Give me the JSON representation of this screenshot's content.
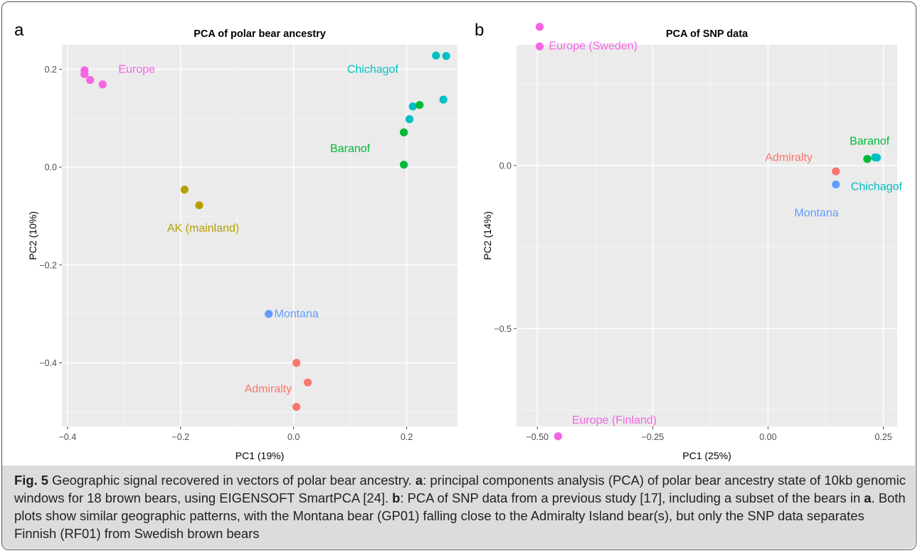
{
  "figure": {
    "caption": {
      "fig_label": "Fig. 5",
      "lead": " Geographic signal recovered in vectors of polar bear ancestry. ",
      "a_label": "a",
      "a_text": ": principal components analysis (PCA) of polar bear ancestry state of 10kb genomic windows for 18 brown bears, using EIGENSOFT SmartPCA [24]. ",
      "b_label": "b",
      "b_text": ": PCA of SNP data from a previous study [17], including a subset of the bears in ",
      "a_ref": "a",
      "tail": ". Both plots show similar geographic patterns, with the Montana bear (GP01) falling close to the Admiralty Island bear(s), but only the SNP data separates Finnish (RF01) from Swedish brown bears"
    }
  },
  "chart_data": [
    {
      "panel_label": "a",
      "type": "scatter",
      "title": "PCA of polar bear ancestry",
      "xlabel": "PC1 (19%)",
      "ylabel": "PC2 (10%)",
      "xlim": [
        -0.41,
        0.29
      ],
      "ylim": [
        -0.53,
        0.25
      ],
      "xticks": [
        -0.4,
        -0.2,
        0.0,
        0.2
      ],
      "xtick_labels": [
        "−0.4",
        "−0.2",
        "0.0",
        "0.2"
      ],
      "yticks": [
        0.2,
        0.0,
        -0.2,
        -0.4
      ],
      "ytick_labels": [
        "0.2",
        "0.0",
        "−0.2",
        "−0.4"
      ],
      "grid": true,
      "background": "#ebebeb",
      "series": [
        {
          "name": "Europe",
          "color": "#f564e3",
          "label_x": -0.31,
          "label_y": 0.2,
          "label_anchor": "start",
          "points": [
            [
              -0.37,
              0.198
            ],
            [
              -0.37,
              0.19
            ],
            [
              -0.36,
              0.178
            ],
            [
              -0.338,
              0.169
            ]
          ]
        },
        {
          "name": "Chichagof",
          "color": "#00bfc4",
          "label_x": 0.14,
          "label_y": 0.2,
          "label_anchor": "middle",
          "points": [
            [
              0.252,
              0.228
            ],
            [
              0.27,
              0.227
            ],
            [
              0.265,
              0.138
            ],
            [
              0.211,
              0.124
            ],
            [
              0.205,
              0.098
            ]
          ]
        },
        {
          "name": "Baranof",
          "color": "#00ba38",
          "label_x": 0.1,
          "label_y": 0.038,
          "label_anchor": "middle",
          "points": [
            [
              0.223,
              0.127
            ],
            [
              0.195,
              0.071
            ],
            [
              0.195,
              0.005
            ]
          ]
        },
        {
          "name": "AK (mainland)",
          "color": "#b79f00",
          "label_x": -0.16,
          "label_y": -0.125,
          "label_anchor": "middle",
          "points": [
            [
              -0.193,
              -0.046
            ],
            [
              -0.167,
              -0.078
            ]
          ]
        },
        {
          "name": "Montana",
          "color": "#619cff",
          "label_x": 0.005,
          "label_y": -0.3,
          "label_anchor": "middle",
          "points": [
            [
              -0.044,
              -0.3
            ]
          ]
        },
        {
          "name": "Admiralty",
          "color": "#f8766d",
          "label_x": -0.045,
          "label_y": -0.453,
          "label_anchor": "middle",
          "points": [
            [
              0.005,
              -0.4
            ],
            [
              0.025,
              -0.44
            ],
            [
              0.005,
              -0.49
            ]
          ]
        }
      ]
    },
    {
      "panel_label": "b",
      "type": "scatter",
      "title": "PCA of SNP data",
      "xlabel": "PC1 (25%)",
      "ylabel": "PC2 (14%)",
      "xlim": [
        -0.545,
        0.28
      ],
      "ylim": [
        -0.8,
        0.37
      ],
      "xticks": [
        -0.5,
        -0.25,
        0.0,
        0.25
      ],
      "xtick_labels": [
        "−0.50",
        "−0.25",
        "0.00",
        "0.25"
      ],
      "yticks": [
        0.0,
        -0.5
      ],
      "ytick_labels": [
        "0.0",
        "−0.5"
      ],
      "grid": true,
      "background": "#ebebeb",
      "series": [
        {
          "name": "Europe (Sweden)",
          "color": "#f564e3",
          "label_x": -0.475,
          "label_y": 0.395,
          "label_anchor": "start",
          "label_dy": 18,
          "points": [
            [
              -0.495,
              0.425
            ],
            [
              -0.495,
              0.365
            ]
          ]
        },
        {
          "name": "Europe (Finland)",
          "color": "#f564e3",
          "label_x": -0.425,
          "label_y": -0.78,
          "label_anchor": "start",
          "points": [
            [
              -0.455,
              -0.83
            ]
          ]
        },
        {
          "name": "Baranof",
          "color": "#00ba38",
          "label_x": 0.22,
          "label_y": 0.075,
          "label_anchor": "middle",
          "points": [
            [
              0.215,
              0.02
            ]
          ]
        },
        {
          "name": "Chichagof",
          "color": "#00bfc4",
          "label_x": 0.235,
          "label_y": -0.065,
          "label_anchor": "middle",
          "points": [
            [
              0.232,
              0.025
            ],
            [
              0.236,
              0.024
            ]
          ]
        },
        {
          "name": "Admiralty",
          "color": "#f8766d",
          "label_x": 0.045,
          "label_y": 0.025,
          "label_anchor": "middle",
          "points": [
            [
              0.147,
              -0.018
            ]
          ]
        },
        {
          "name": "Montana",
          "color": "#619cff",
          "label_x": 0.105,
          "label_y": -0.145,
          "label_anchor": "middle",
          "points": [
            [
              0.147,
              -0.058
            ]
          ]
        }
      ]
    }
  ]
}
